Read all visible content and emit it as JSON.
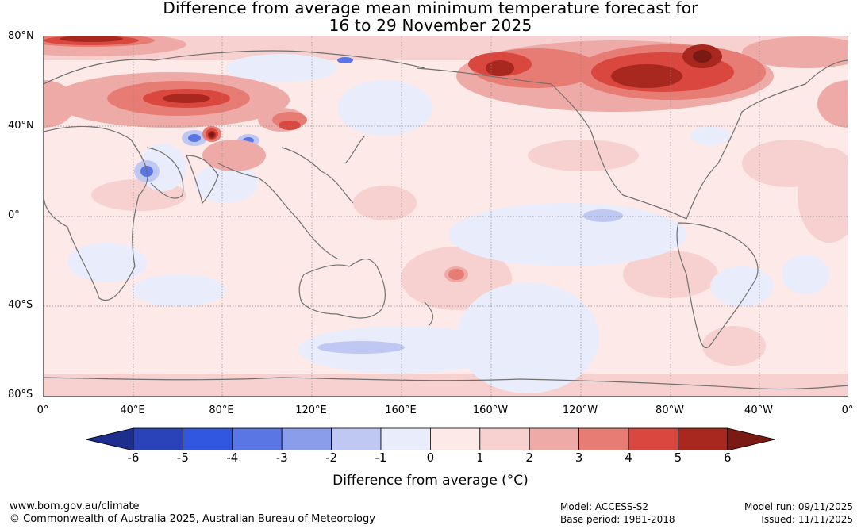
{
  "title": {
    "line1": "Difference from average mean minimum temperature forecast for",
    "line2": "16 to 29 November 2025"
  },
  "lat_labels": [
    "80°N",
    "40°N",
    "0°",
    "40°S",
    "80°S"
  ],
  "lon_labels": [
    "0°",
    "40°E",
    "80°E",
    "120°E",
    "160°E",
    "160°W",
    "120°W",
    "80°W",
    "40°W",
    "0°"
  ],
  "colorbar": {
    "ticks": [
      "-6",
      "-5",
      "-4",
      "-3",
      "-2",
      "-1",
      "0",
      "1",
      "2",
      "3",
      "4",
      "5",
      "6"
    ],
    "colors": [
      "#1e2e8c",
      "#2a43b8",
      "#3156e0",
      "#5a75e4",
      "#8a9deb",
      "#bfc8f3",
      "#e9ecfb",
      "#fde9e7",
      "#f6d1cf",
      "#eeaaa6",
      "#e67c74",
      "#d9473e",
      "#a82820",
      "#7a1a15"
    ],
    "label": "Difference from average (°C)"
  },
  "footer": {
    "url": "www.bom.gov.au/climate",
    "copyright": "© Commonwealth of Australia 2025, Australian Bureau of Meteorology",
    "model": "Model: ACCESS-S2",
    "base_period": "Base period: 1981-2018",
    "model_run": "Model run: 09/11/2025",
    "issued": "Issued: 11/11/2025"
  }
}
